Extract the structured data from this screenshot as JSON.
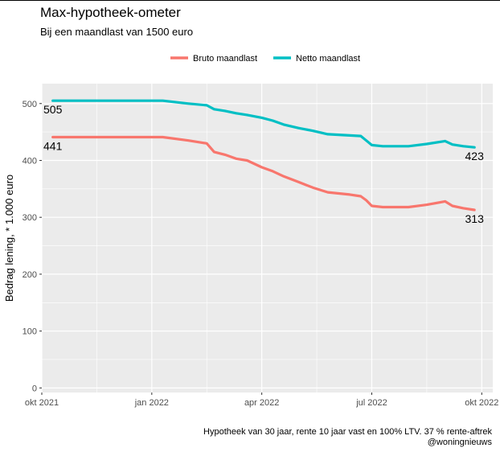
{
  "chart_data": {
    "type": "line",
    "title": "Max-hypotheek-ometer",
    "subtitle": "Bij een maandlast van 1500 euro",
    "xlabel": "",
    "ylabel": "Bedrag lening, * 1.000 euro",
    "ylim": [
      -8,
      535
    ],
    "xlim": [
      0,
      12.3
    ],
    "x_ticks": [
      {
        "value": 0,
        "label": "okt 2021"
      },
      {
        "value": 3,
        "label": "jan 2022"
      },
      {
        "value": 6,
        "label": "apr 2022"
      },
      {
        "value": 9,
        "label": "jul 2022"
      },
      {
        "value": 12,
        "label": "okt 2022"
      }
    ],
    "y_ticks": [
      {
        "value": 0,
        "label": "0"
      },
      {
        "value": 100,
        "label": "100"
      },
      {
        "value": 200,
        "label": "200"
      },
      {
        "value": 300,
        "label": "300"
      },
      {
        "value": 400,
        "label": "400"
      },
      {
        "value": 500,
        "label": "500"
      }
    ],
    "legend": {
      "position": "top"
    },
    "series": [
      {
        "name": "Bruto maandlast",
        "color": "#F8766D",
        "x": [
          0.3,
          3.3,
          4.0,
          4.5,
          4.7,
          5.0,
          5.3,
          5.6,
          6.0,
          6.3,
          6.6,
          7.0,
          7.4,
          7.8,
          8.1,
          8.4,
          8.7,
          8.85,
          9.0,
          9.3,
          10.0,
          10.5,
          11.0,
          11.2,
          11.5,
          11.8
        ],
        "y": [
          441,
          441,
          435,
          430,
          415,
          410,
          403,
          400,
          388,
          381,
          372,
          362,
          352,
          344,
          342,
          340,
          337,
          330,
          320,
          318,
          318,
          322,
          328,
          320,
          316,
          313
        ]
      },
      {
        "name": "Netto maandlast",
        "color": "#00BFC4",
        "x": [
          0.3,
          3.3,
          4.0,
          4.5,
          4.7,
          5.0,
          5.3,
          5.6,
          6.0,
          6.3,
          6.6,
          7.0,
          7.4,
          7.8,
          8.1,
          8.4,
          8.7,
          8.85,
          9.0,
          9.3,
          10.0,
          10.5,
          11.0,
          11.2,
          11.5,
          11.8
        ],
        "y": [
          505,
          505,
          500,
          497,
          490,
          487,
          483,
          480,
          475,
          470,
          463,
          457,
          452,
          446,
          445,
          444,
          443,
          435,
          427,
          425,
          425,
          429,
          434,
          428,
          425,
          423
        ]
      }
    ],
    "annotations": [
      {
        "text": "505",
        "x": 0.3,
        "y": 505,
        "series": "Netto maandlast",
        "placement": "below"
      },
      {
        "text": "441",
        "x": 0.3,
        "y": 441,
        "series": "Bruto maandlast",
        "placement": "below"
      },
      {
        "text": "423",
        "x": 11.8,
        "y": 423,
        "series": "Netto maandlast",
        "placement": "below"
      },
      {
        "text": "313",
        "x": 11.8,
        "y": 313,
        "series": "Bruto maandlast",
        "placement": "below"
      }
    ],
    "caption_lines": [
      "Hypotheek van 30 jaar, rente 10 jaar vast en 100% LTV. 37 % rente-aftrek",
      "@woningnieuws"
    ]
  }
}
